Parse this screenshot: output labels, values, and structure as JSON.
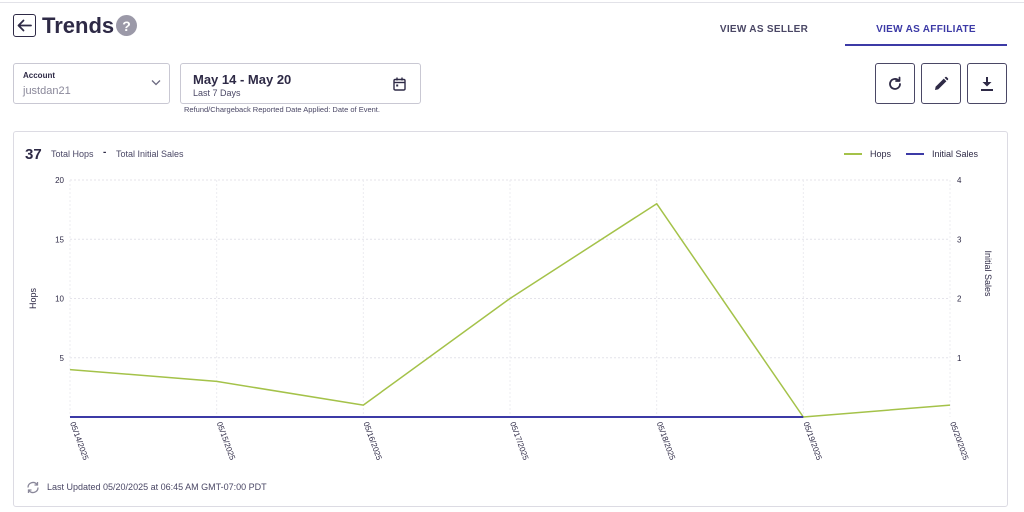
{
  "header": {
    "title": "Trends",
    "help_glyph": "?",
    "back_icon": "arrow-left-icon",
    "tabs": [
      {
        "label": "VIEW AS SELLER",
        "active": false
      },
      {
        "label": "VIEW AS AFFILIATE",
        "active": true
      }
    ],
    "accent_color": "#3c3aa6"
  },
  "controls": {
    "account": {
      "label": "Account",
      "value": "justdan21"
    },
    "date": {
      "range": "May 14 - May 20",
      "period": "Last 7 Days"
    },
    "refund_note": "Refund/Chargeback Reported Date Applied: Date of Event.",
    "actions": [
      {
        "icon": "refresh-icon"
      },
      {
        "icon": "pencil-icon"
      },
      {
        "icon": "download-icon"
      }
    ]
  },
  "summary": {
    "total": "37",
    "total_hops_label": "Total Hops",
    "separator": "-",
    "total_sales_label": "Total Initial Sales"
  },
  "chart_data": {
    "type": "line",
    "categories": [
      "05/14/2025",
      "05/15/2025",
      "05/16/2025",
      "05/17/2025",
      "05/18/2025",
      "05/19/2025",
      "05/20/2025"
    ],
    "series": [
      {
        "name": "Hops",
        "axis": "left",
        "color": "#a4c249",
        "values": [
          4,
          3,
          1,
          10,
          18,
          0,
          1
        ]
      },
      {
        "name": "Initial Sales",
        "axis": "right",
        "color": "#3c3aa6",
        "values": [
          0,
          0,
          0,
          0,
          0,
          0,
          null
        ]
      }
    ],
    "ylabel_left": "Hops",
    "ylabel_right": "Initial Sales",
    "yticks_left": [
      "20",
      "15",
      "10",
      "5"
    ],
    "yticks_right": [
      "4",
      "3",
      "2",
      "1"
    ],
    "ylim_left": [
      0,
      20
    ],
    "ylim_right": [
      0,
      4
    ],
    "grid": true,
    "legend_position": "top-right"
  },
  "footer": {
    "last_updated": "Last Updated 05/20/2025 at 06:45 AM GMT-07:00 PDT"
  }
}
